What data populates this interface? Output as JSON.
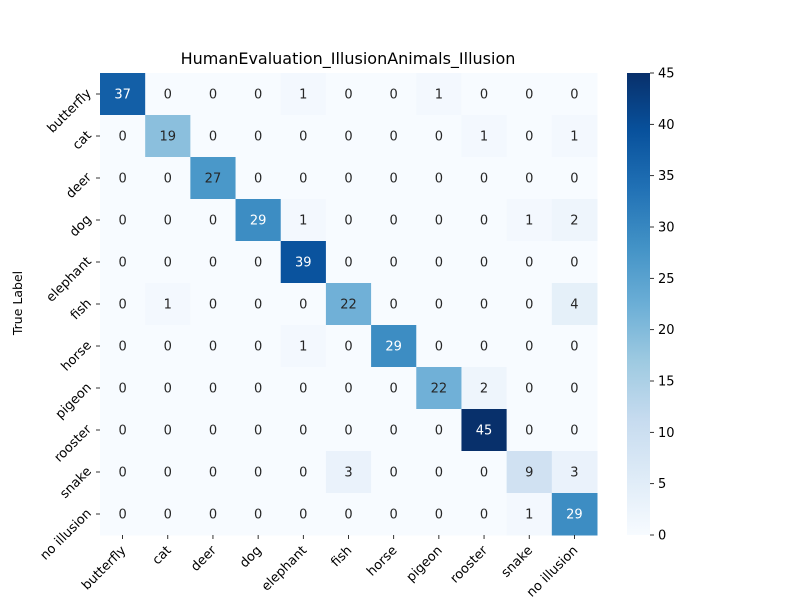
{
  "chart_data": {
    "type": "heatmap",
    "title": "HumanEvaluation_IllusionAnimals_Illusion",
    "xlabel": "",
    "ylabel": "True Label",
    "row_labels": [
      "butterfly",
      "cat",
      "deer",
      "dog",
      "elephant",
      "fish",
      "horse",
      "pigeon",
      "rooster",
      "snake",
      "no illusion"
    ],
    "col_labels": [
      "butterfly",
      "cat",
      "deer",
      "dog",
      "elephant",
      "fish",
      "horse",
      "pigeon",
      "rooster",
      "snake",
      "no illusion"
    ],
    "values": [
      [
        37,
        0,
        0,
        0,
        1,
        0,
        0,
        1,
        0,
        0,
        0
      ],
      [
        0,
        19,
        0,
        0,
        0,
        0,
        0,
        0,
        1,
        0,
        1
      ],
      [
        0,
        0,
        27,
        0,
        0,
        0,
        0,
        0,
        0,
        0,
        0
      ],
      [
        0,
        0,
        0,
        29,
        1,
        0,
        0,
        0,
        0,
        1,
        2
      ],
      [
        0,
        0,
        0,
        0,
        39,
        0,
        0,
        0,
        0,
        0,
        0
      ],
      [
        0,
        1,
        0,
        0,
        0,
        22,
        0,
        0,
        0,
        0,
        4
      ],
      [
        0,
        0,
        0,
        0,
        1,
        0,
        29,
        0,
        0,
        0,
        0
      ],
      [
        0,
        0,
        0,
        0,
        0,
        0,
        0,
        22,
        2,
        0,
        0
      ],
      [
        0,
        0,
        0,
        0,
        0,
        0,
        0,
        0,
        45,
        0,
        0
      ],
      [
        0,
        0,
        0,
        0,
        0,
        3,
        0,
        0,
        0,
        9,
        3
      ],
      [
        0,
        0,
        0,
        0,
        0,
        0,
        0,
        0,
        0,
        1,
        29
      ]
    ],
    "colormap": "Blues",
    "vmin": 0,
    "vmax": 45,
    "colorbar_ticks": [
      0,
      5,
      10,
      15,
      20,
      25,
      30,
      35,
      40,
      45
    ],
    "colorbar_tick_labels": [
      "0",
      "5",
      "10",
      "15",
      "20",
      "25",
      "30",
      "35",
      "40",
      "45"
    ],
    "grid": false,
    "legend": "colorbar-right"
  }
}
